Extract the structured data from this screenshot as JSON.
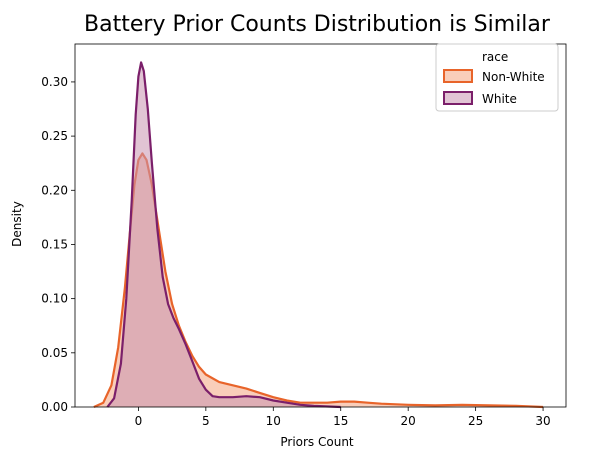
{
  "chart_data": {
    "type": "area",
    "title": "Battery Prior Counts Distribution is Similar",
    "xlabel": "Priors Count",
    "ylabel": "Density",
    "xlim": [
      -4.7,
      31.7
    ],
    "ylim": [
      0,
      0.335
    ],
    "xticks": [
      0,
      5,
      10,
      15,
      20,
      25,
      30
    ],
    "yticks": [
      0.0,
      0.05,
      0.1,
      0.15,
      0.2,
      0.25,
      0.3
    ],
    "ytick_labels": [
      "0.00",
      "0.05",
      "0.10",
      "0.15",
      "0.20",
      "0.25",
      "0.30"
    ],
    "grid": false,
    "legend": {
      "title": "race",
      "position": "upper right"
    },
    "series": [
      {
        "name": "Non-White",
        "color": "#e8642a",
        "fill": "#f4a582",
        "points": [
          [
            -3.3,
            0.0
          ],
          [
            -2.6,
            0.004
          ],
          [
            -2.0,
            0.02
          ],
          [
            -1.5,
            0.055
          ],
          [
            -1.0,
            0.11
          ],
          [
            -0.6,
            0.165
          ],
          [
            -0.3,
            0.205
          ],
          [
            0.0,
            0.228
          ],
          [
            0.3,
            0.234
          ],
          [
            0.6,
            0.228
          ],
          [
            1.0,
            0.205
          ],
          [
            1.5,
            0.165
          ],
          [
            2.0,
            0.125
          ],
          [
            2.5,
            0.095
          ],
          [
            3.0,
            0.075
          ],
          [
            3.5,
            0.06
          ],
          [
            4.0,
            0.047
          ],
          [
            4.5,
            0.037
          ],
          [
            5.0,
            0.03
          ],
          [
            6.0,
            0.023
          ],
          [
            7.0,
            0.02
          ],
          [
            8.0,
            0.017
          ],
          [
            9.0,
            0.013
          ],
          [
            10.0,
            0.009
          ],
          [
            11.0,
            0.006
          ],
          [
            12.0,
            0.004
          ],
          [
            13.0,
            0.004
          ],
          [
            14.0,
            0.004
          ],
          [
            15.0,
            0.005
          ],
          [
            16.0,
            0.005
          ],
          [
            17.0,
            0.004
          ],
          [
            18.0,
            0.003
          ],
          [
            20.0,
            0.002
          ],
          [
            22.0,
            0.0015
          ],
          [
            24.0,
            0.002
          ],
          [
            26.0,
            0.0015
          ],
          [
            28.0,
            0.001
          ],
          [
            30.0,
            0.0
          ]
        ]
      },
      {
        "name": "White",
        "color": "#7b1f6a",
        "fill": "#c993b0",
        "points": [
          [
            -2.3,
            0.0
          ],
          [
            -1.8,
            0.008
          ],
          [
            -1.3,
            0.04
          ],
          [
            -0.9,
            0.1
          ],
          [
            -0.5,
            0.19
          ],
          [
            -0.2,
            0.27
          ],
          [
            0.0,
            0.305
          ],
          [
            0.2,
            0.318
          ],
          [
            0.4,
            0.31
          ],
          [
            0.7,
            0.275
          ],
          [
            1.0,
            0.225
          ],
          [
            1.4,
            0.165
          ],
          [
            1.8,
            0.12
          ],
          [
            2.2,
            0.095
          ],
          [
            2.6,
            0.082
          ],
          [
            3.0,
            0.072
          ],
          [
            3.5,
            0.058
          ],
          [
            4.0,
            0.042
          ],
          [
            4.5,
            0.026
          ],
          [
            5.0,
            0.016
          ],
          [
            5.5,
            0.01
          ],
          [
            6.0,
            0.009
          ],
          [
            7.0,
            0.009
          ],
          [
            8.0,
            0.01
          ],
          [
            9.0,
            0.009
          ],
          [
            10.0,
            0.006
          ],
          [
            11.0,
            0.004
          ],
          [
            12.0,
            0.002
          ],
          [
            13.0,
            0.001
          ],
          [
            15.0,
            0.0
          ]
        ]
      }
    ]
  }
}
